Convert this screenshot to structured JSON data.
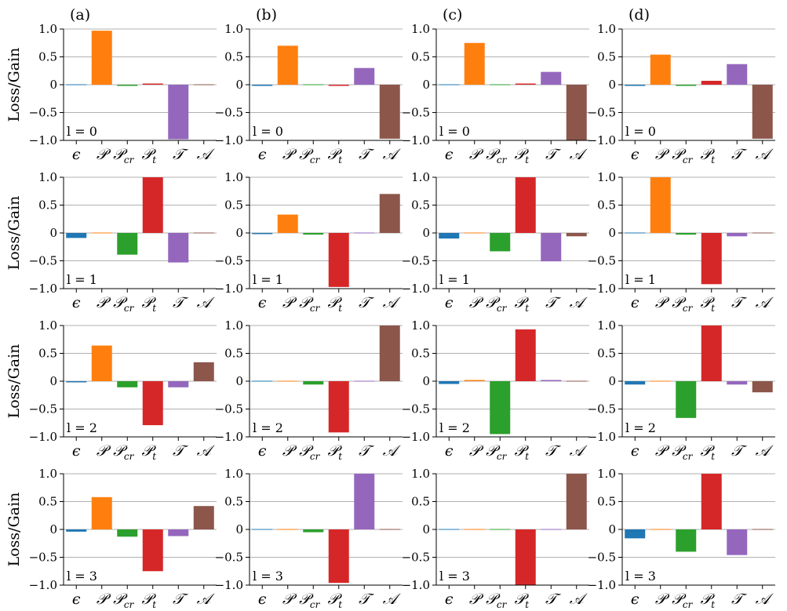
{
  "colors": {
    "epsilon": "#1f77b4",
    "P": "#ff7f0e",
    "Pcr": "#2ca02c",
    "Pt": "#d62728",
    "T": "#9467bd",
    "A": "#8c564b",
    "grid": "#b0b0b0"
  },
  "ylabel": "Loss/Gain",
  "category_labels": [
    {
      "main": "ϵ",
      "sub": ""
    },
    {
      "main": "𝒫",
      "sub": ""
    },
    {
      "main": "𝒫",
      "sub": "cr"
    },
    {
      "main": "𝒫",
      "sub": "t"
    },
    {
      "main": "𝒯",
      "sub": ""
    },
    {
      "main": "𝒜",
      "sub": ""
    }
  ],
  "column_labels": [
    "(a)",
    "(b)",
    "(c)",
    "(d)"
  ],
  "row_labels": [
    "l = 0",
    "l = 1",
    "l = 2",
    "l = 3"
  ],
  "chart_data": {
    "type": "bar",
    "layout": "4 rows × 4 columns of panels",
    "categories": [
      "ϵ",
      "𝒫",
      "𝒫cr",
      "𝒫t",
      "𝒯",
      "𝒜"
    ],
    "ylim": [
      -1.0,
      1.0
    ],
    "yticks": [
      1.0,
      0.5,
      0,
      -0.5,
      -1.0
    ],
    "ytick_labels": [
      "1.0",
      "0.5",
      "0",
      "−0.5",
      "−1.0"
    ],
    "grid": "horizontal at y ticks",
    "panels": [
      [
        {
          "column": "(a)",
          "row": "l = 0",
          "values": [
            0.0,
            0.97,
            -0.02,
            0.01,
            -0.98,
            0.0
          ]
        },
        {
          "column": "(b)",
          "row": "l = 0",
          "values": [
            -0.02,
            0.7,
            0.0,
            -0.02,
            0.3,
            -0.97
          ]
        },
        {
          "column": "(c)",
          "row": "l = 0",
          "values": [
            0.0,
            0.75,
            0.0,
            0.01,
            0.23,
            -1.0
          ]
        },
        {
          "column": "(d)",
          "row": "l = 0",
          "values": [
            -0.02,
            0.54,
            -0.02,
            0.07,
            0.37,
            -0.97
          ]
        }
      ],
      [
        {
          "column": "(a)",
          "row": "l = 1",
          "values": [
            -0.09,
            0.0,
            -0.39,
            1.0,
            -0.53,
            0.0
          ]
        },
        {
          "column": "(b)",
          "row": "l = 1",
          "values": [
            -0.01,
            0.33,
            -0.03,
            -0.97,
            0.0,
            0.7
          ]
        },
        {
          "column": "(c)",
          "row": "l = 1",
          "values": [
            -0.1,
            0.0,
            -0.33,
            1.0,
            -0.51,
            -0.06
          ]
        },
        {
          "column": "(d)",
          "row": "l = 1",
          "values": [
            0.0,
            1.0,
            -0.03,
            -0.92,
            -0.06,
            0.0
          ]
        }
      ],
      [
        {
          "column": "(a)",
          "row": "l = 2",
          "values": [
            -0.02,
            0.64,
            -0.11,
            -0.79,
            -0.11,
            0.34
          ]
        },
        {
          "column": "(b)",
          "row": "l = 2",
          "values": [
            0.0,
            0.0,
            -0.06,
            -0.92,
            0.0,
            1.0
          ]
        },
        {
          "column": "(c)",
          "row": "l = 2",
          "values": [
            -0.05,
            0.02,
            -0.95,
            0.93,
            0.02,
            0.0
          ]
        },
        {
          "column": "(d)",
          "row": "l = 2",
          "values": [
            -0.06,
            0.0,
            -0.66,
            1.0,
            -0.06,
            -0.2
          ]
        }
      ],
      [
        {
          "column": "(a)",
          "row": "l = 3",
          "values": [
            -0.04,
            0.58,
            -0.13,
            -0.75,
            -0.12,
            0.42
          ]
        },
        {
          "column": "(b)",
          "row": "l = 3",
          "values": [
            0.0,
            0.0,
            -0.05,
            -0.96,
            1.0,
            0.0
          ]
        },
        {
          "column": "(c)",
          "row": "l = 3",
          "values": [
            0.0,
            0.0,
            0.0,
            -1.0,
            0.0,
            1.0
          ]
        },
        {
          "column": "(d)",
          "row": "l = 3",
          "values": [
            -0.16,
            0.0,
            -0.4,
            1.0,
            -0.46,
            0.0
          ]
        }
      ]
    ]
  }
}
